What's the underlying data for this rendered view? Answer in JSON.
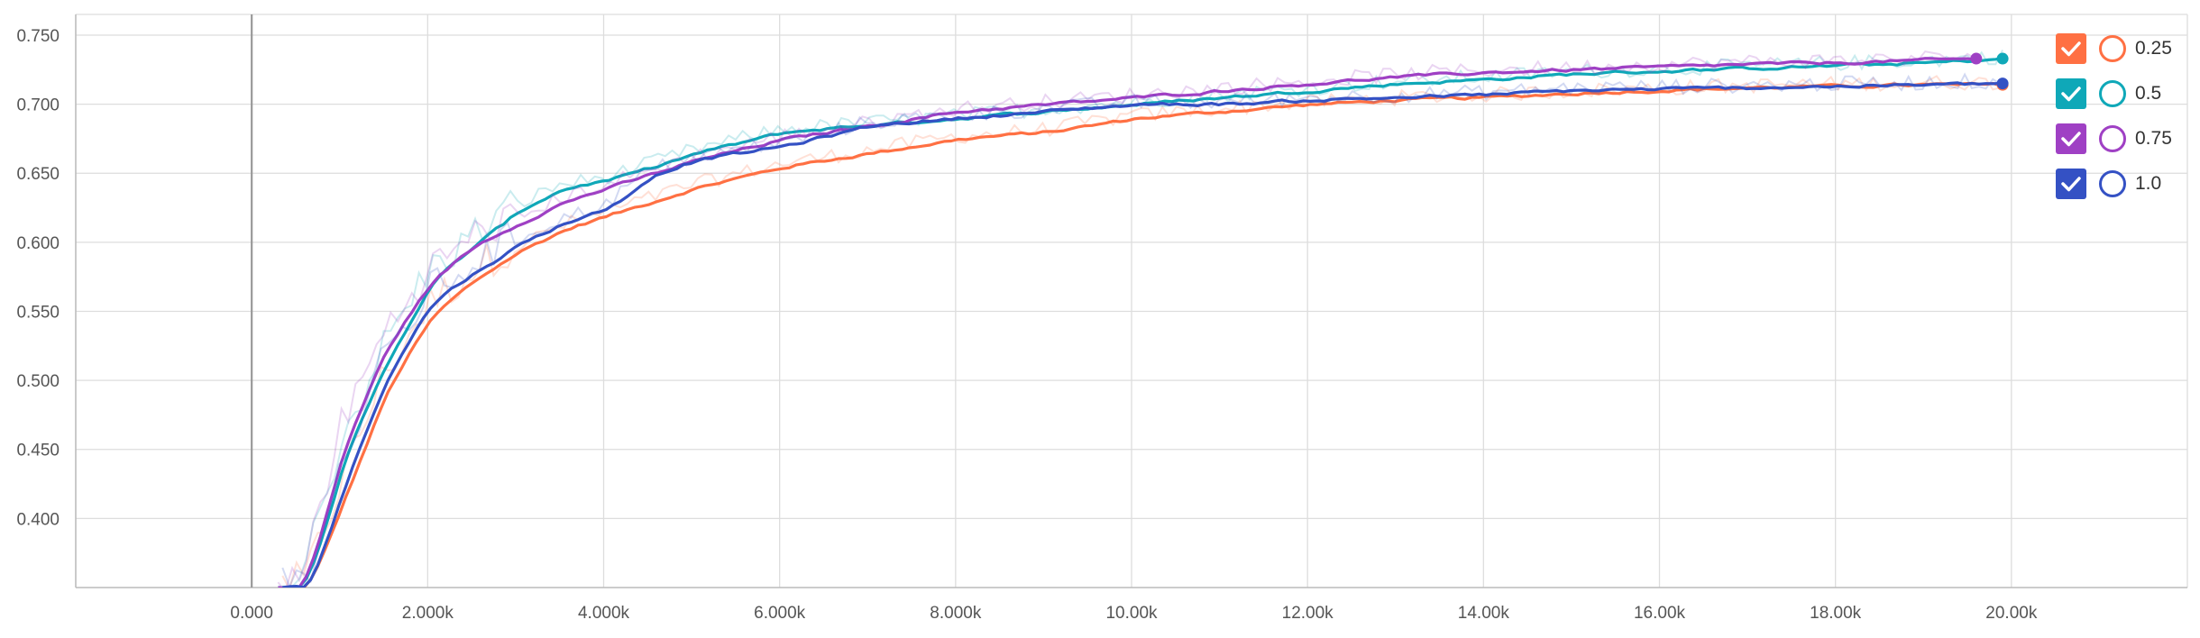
{
  "chart_data": {
    "type": "line",
    "title": "",
    "xlabel": "",
    "ylabel": "",
    "xlim": [
      -2000,
      22000
    ],
    "ylim": [
      0.35,
      0.765
    ],
    "x_ticks": [
      0,
      2000,
      4000,
      6000,
      8000,
      10000,
      12000,
      14000,
      16000,
      18000,
      20000
    ],
    "x_tick_labels": [
      "0.000",
      "2.000k",
      "4.000k",
      "6.000k",
      "8.000k",
      "10.00k",
      "12.00k",
      "14.00k",
      "16.00k",
      "18.00k",
      "20.00k"
    ],
    "y_ticks": [
      0.4,
      0.45,
      0.5,
      0.55,
      0.6,
      0.65,
      0.7,
      0.75
    ],
    "y_tick_labels": [
      "0.400",
      "0.450",
      "0.500",
      "0.550",
      "0.600",
      "0.650",
      "0.700",
      "0.750"
    ],
    "grid": true,
    "legend_position": "top-right",
    "series": [
      {
        "name": "0.25",
        "color": "#ff7043",
        "x": [
          600,
          1000,
          1500,
          2000,
          2500,
          3000,
          3500,
          4000,
          4500,
          5000,
          6000,
          7000,
          8000,
          9000,
          10000,
          11000,
          12000,
          13000,
          14000,
          15000,
          16000,
          17000,
          18000,
          19000,
          19900
        ],
        "values": [
          0.35,
          0.42,
          0.5,
          0.55,
          0.575,
          0.595,
          0.61,
          0.62,
          0.63,
          0.64,
          0.655,
          0.665,
          0.675,
          0.68,
          0.69,
          0.695,
          0.7,
          0.703,
          0.705,
          0.708,
          0.71,
          0.712,
          0.713,
          0.714,
          0.714
        ]
      },
      {
        "name": "0.5",
        "color": "#0fa8b8",
        "x": [
          550,
          1000,
          1500,
          2000,
          2500,
          3000,
          3500,
          4000,
          4500,
          5000,
          6000,
          7000,
          8000,
          9000,
          10000,
          11000,
          12000,
          13000,
          14000,
          15000,
          16000,
          17000,
          18000,
          19000,
          19900
        ],
        "values": [
          0.35,
          0.45,
          0.52,
          0.575,
          0.6,
          0.625,
          0.64,
          0.645,
          0.655,
          0.665,
          0.68,
          0.685,
          0.69,
          0.695,
          0.7,
          0.705,
          0.71,
          0.715,
          0.718,
          0.722,
          0.724,
          0.726,
          0.728,
          0.73,
          0.733
        ]
      },
      {
        "name": "0.75",
        "color": "#9f40c4",
        "x": [
          550,
          1000,
          1500,
          2000,
          2500,
          3000,
          3500,
          4000,
          4500,
          5000,
          6000,
          7000,
          8000,
          9000,
          10000,
          11000,
          12000,
          13000,
          14000,
          15000,
          16000,
          17000,
          18000,
          19000,
          19600
        ],
        "values": [
          0.35,
          0.46,
          0.53,
          0.575,
          0.6,
          0.615,
          0.63,
          0.64,
          0.65,
          0.66,
          0.675,
          0.685,
          0.695,
          0.7,
          0.705,
          0.71,
          0.715,
          0.72,
          0.723,
          0.725,
          0.727,
          0.729,
          0.73,
          0.732,
          0.733
        ]
      },
      {
        "name": "1.0",
        "color": "#3451c4",
        "x": [
          600,
          1000,
          1500,
          2000,
          2500,
          3000,
          3500,
          4000,
          4500,
          5000,
          6000,
          7000,
          8000,
          9000,
          10000,
          11000,
          12000,
          13000,
          14000,
          15000,
          16000,
          17000,
          18000,
          19000,
          19900
        ],
        "values": [
          0.35,
          0.43,
          0.51,
          0.56,
          0.58,
          0.6,
          0.615,
          0.625,
          0.65,
          0.66,
          0.67,
          0.685,
          0.69,
          0.695,
          0.7,
          0.7,
          0.703,
          0.705,
          0.707,
          0.71,
          0.711,
          0.712,
          0.713,
          0.714,
          0.715
        ]
      }
    ]
  }
}
